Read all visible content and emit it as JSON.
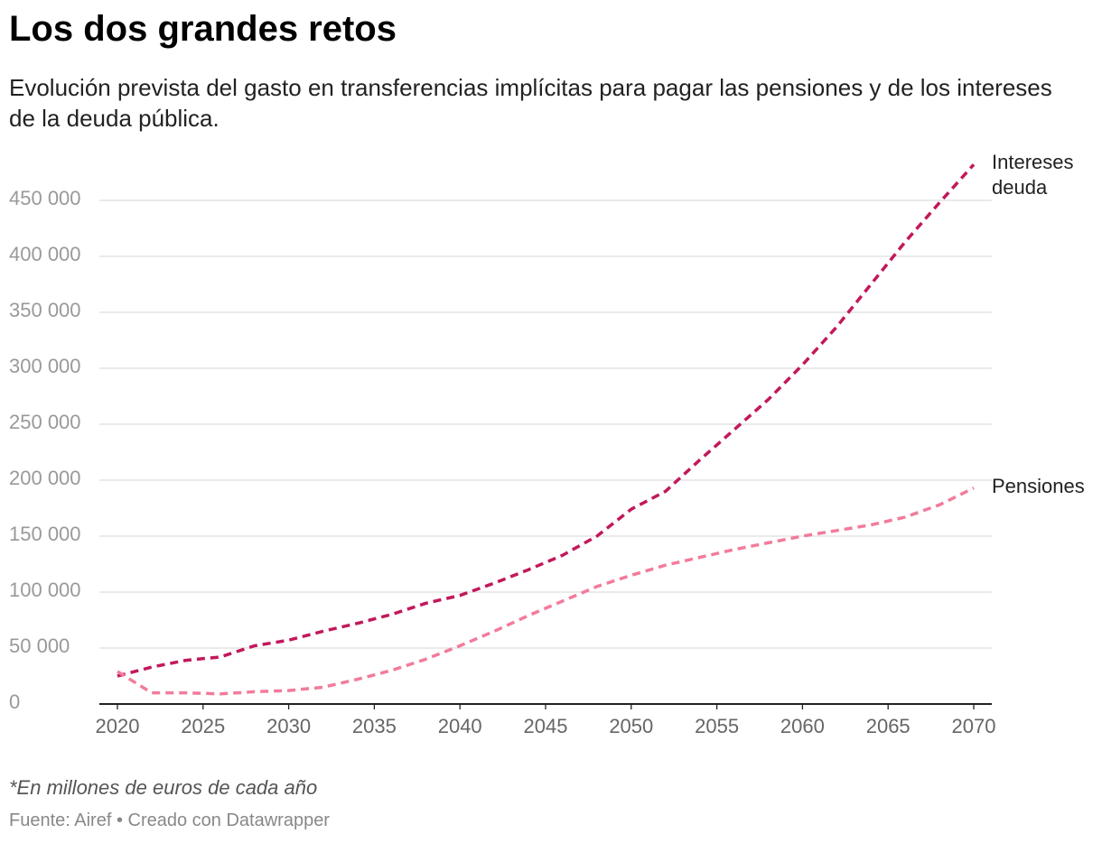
{
  "chart_data": {
    "type": "line",
    "title": "Los dos grandes retos",
    "subtitle": "Evolución prevista del gasto en transferencias implícitas para pagar las pensiones y de los intereses de la deuda pública.",
    "note": "*En millones de euros de cada año",
    "source": "Fuente: Airef • Creado con Datawrapper",
    "x": [
      2020,
      2022,
      2024,
      2026,
      2028,
      2030,
      2032,
      2034,
      2036,
      2038,
      2040,
      2042,
      2044,
      2046,
      2048,
      2050,
      2052,
      2054,
      2056,
      2058,
      2060,
      2062,
      2064,
      2066,
      2068,
      2070
    ],
    "series": [
      {
        "name": "Intereses deuda",
        "color": "#c2185b",
        "values": [
          25000,
          33000,
          39000,
          42000,
          52000,
          57000,
          65000,
          72000,
          80000,
          90000,
          97000,
          108000,
          120000,
          133000,
          150000,
          174000,
          190000,
          218000,
          245000,
          272000,
          303000,
          337000,
          375000,
          413000,
          448000,
          482000
        ]
      },
      {
        "name": "Pensiones",
        "color": "#f27b9b",
        "values": [
          29000,
          10000,
          10000,
          9000,
          11000,
          12000,
          15000,
          22000,
          30000,
          40000,
          52000,
          65000,
          79000,
          92000,
          105000,
          115000,
          124000,
          131000,
          138000,
          144000,
          150000,
          155000,
          160000,
          167000,
          178000,
          193000
        ]
      }
    ],
    "xlim": [
      2020,
      2070
    ],
    "xticks": [
      2020,
      2025,
      2030,
      2035,
      2040,
      2045,
      2050,
      2055,
      2060,
      2065,
      2070
    ],
    "ylim": [
      0,
      450000
    ],
    "yticks": [
      0,
      {
        "value": 50000,
        "label": "50 000"
      },
      {
        "value": 100000,
        "label": "100 000"
      },
      {
        "value": 150000,
        "label": "150 000"
      },
      {
        "value": 200000,
        "label": "200 000"
      },
      {
        "value": 250000,
        "label": "250 000"
      },
      {
        "value": 300000,
        "label": "300 000"
      },
      {
        "value": 350000,
        "label": "350 000"
      },
      {
        "value": 400000,
        "label": "400 000"
      },
      {
        "value": 450000,
        "label": "450 000"
      }
    ],
    "grid": true
  }
}
